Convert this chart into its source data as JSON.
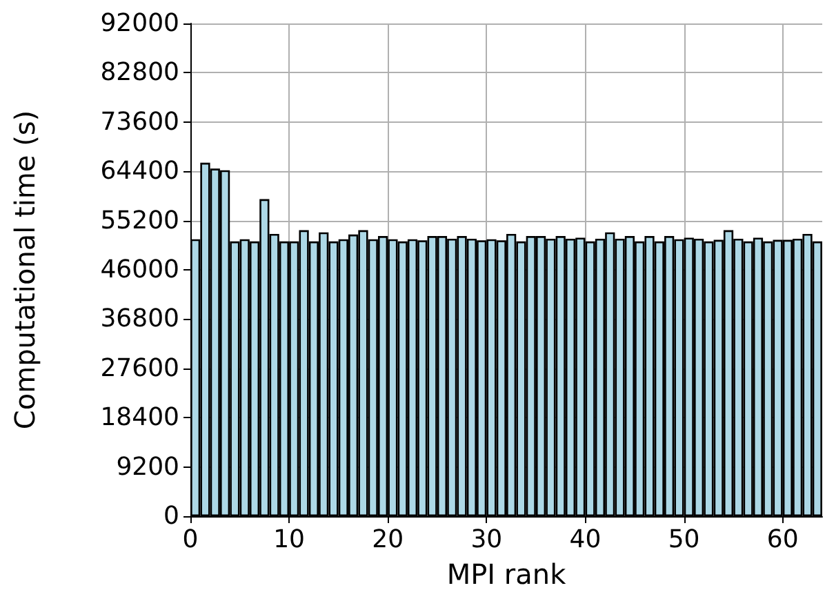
{
  "chart_data": {
    "type": "bar",
    "xlabel": "MPI rank",
    "ylabel": "Computational time (s)",
    "x": [
      0.5,
      1.5,
      2.5,
      3.5,
      4.5,
      5.5,
      6.5,
      7.5,
      8.5,
      9.5,
      10.5,
      11.5,
      12.5,
      13.5,
      14.5,
      15.5,
      16.5,
      17.5,
      18.5,
      19.5,
      20.5,
      21.5,
      22.5,
      23.5,
      24.5,
      25.5,
      26.5,
      27.5,
      28.5,
      29.5,
      30.5,
      31.5,
      32.5,
      33.5,
      34.5,
      35.5,
      36.5,
      37.5,
      38.5,
      39.5,
      40.5,
      41.5,
      42.5,
      43.5,
      44.5,
      45.5,
      46.5,
      47.5,
      48.5,
      49.5,
      50.5,
      51.5,
      52.5,
      53.5,
      54.5,
      55.5,
      56.5,
      57.5,
      58.5,
      59.5,
      60.5,
      61.5,
      62.5,
      63.5
    ],
    "values": [
      51700,
      66000,
      64900,
      64600,
      51300,
      51700,
      51300,
      59200,
      52700,
      51300,
      51300,
      53400,
      51300,
      53000,
      51300,
      51700,
      52600,
      53400,
      51700,
      52300,
      51700,
      51300,
      51700,
      51500,
      52300,
      52300,
      51800,
      52300,
      51800,
      51500,
      51700,
      51500,
      52700,
      51300,
      52300,
      52300,
      51800,
      52300,
      51800,
      52000,
      51300,
      51800,
      53000,
      51800,
      52300,
      51300,
      52300,
      51300,
      52300,
      51700,
      52000,
      51800,
      51300,
      51600,
      53400,
      51800,
      51300,
      52000,
      51300,
      51600,
      51600,
      51800,
      52700,
      51300
    ],
    "color": "#add8e6",
    "xlim": [
      0,
      64
    ],
    "xticks": [
      0,
      10,
      20,
      30,
      40,
      50,
      60
    ],
    "ylim": [
      0,
      92000
    ],
    "yticks": [
      0,
      9200,
      18400,
      27600,
      36800,
      46000,
      55200,
      64400,
      73600,
      82800,
      92000
    ],
    "grid": true
  }
}
